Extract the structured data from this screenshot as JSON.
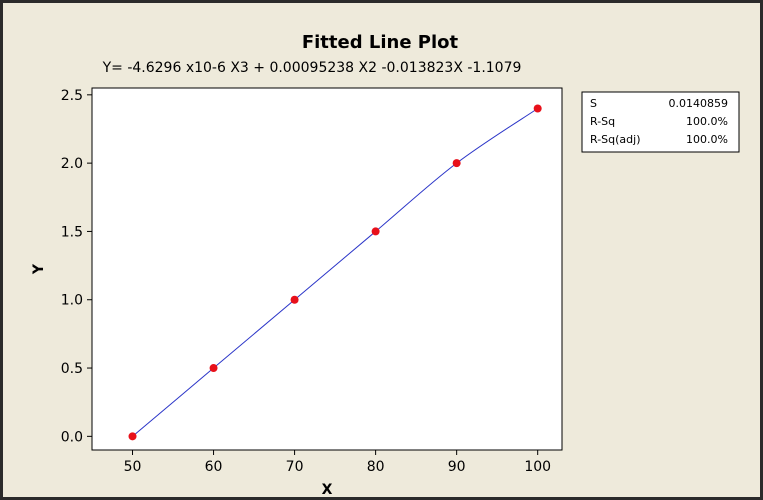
{
  "chart_data": {
    "type": "scatter",
    "title": "Fitted Line Plot",
    "subtitle": "Y= -4.6296 x10-6 X3 + 0.00095238 X2 -0.013823X -1.1079",
    "xlabel": "X",
    "ylabel": "Y",
    "xlim": [
      45,
      103
    ],
    "ylim": [
      -0.1,
      2.55
    ],
    "x_ticks": [
      "50",
      "60",
      "70",
      "80",
      "90",
      "100"
    ],
    "y_ticks": [
      "0.0",
      "0.5",
      "1.0",
      "1.5",
      "2.0",
      "2.5"
    ],
    "grid": false,
    "series": [
      {
        "type": "scatter",
        "x": [
          50,
          60,
          70,
          80,
          90,
          100
        ],
        "y": [
          0.0,
          0.5,
          1.0,
          1.5,
          2.0,
          2.4
        ],
        "color": "#e8101a"
      },
      {
        "type": "line",
        "fit": "cubic",
        "coefficients": {
          "x3": -4.6296e-06,
          "x2": 0.00095238,
          "x1": -0.013823,
          "c": -1.1079
        },
        "x_range": [
          50,
          100
        ],
        "color": "#2b35c8"
      }
    ],
    "stats": [
      {
        "label": "S",
        "value": "0.0140859"
      },
      {
        "label": "R-Sq",
        "value": "100.0%"
      },
      {
        "label": "R-Sq(adj)",
        "value": "100.0%"
      }
    ]
  }
}
